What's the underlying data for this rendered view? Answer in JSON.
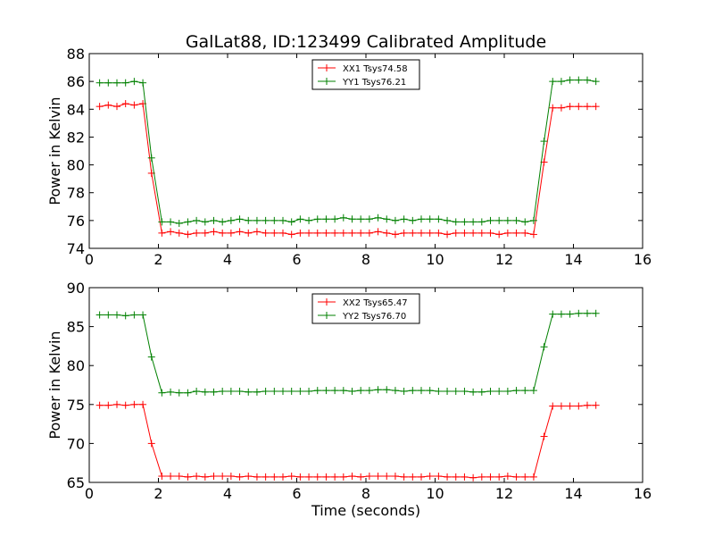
{
  "figure_title": "GalLat88, ID:123499 Calibrated Amplitude",
  "chart_data": [
    {
      "type": "line",
      "title": "GalLat88, ID:123499 Calibrated Amplitude",
      "xlabel": "",
      "ylabel": "Power in Kelvin",
      "xlim": [
        0,
        16
      ],
      "ylim": [
        74,
        88
      ],
      "xticks": [
        0,
        2,
        4,
        6,
        8,
        10,
        12,
        14,
        16
      ],
      "yticks": [
        74,
        76,
        78,
        80,
        82,
        84,
        86,
        88
      ],
      "grid": false,
      "legend_position": "top-center",
      "series": [
        {
          "name": "XX1 Tsys74.58",
          "color": "#ff0000",
          "marker": "+",
          "x": [
            0.3,
            0.55,
            0.8,
            1.05,
            1.3,
            1.55,
            1.8,
            2.1,
            2.35,
            2.6,
            2.85,
            3.1,
            3.35,
            3.6,
            3.85,
            4.1,
            4.35,
            4.6,
            4.85,
            5.1,
            5.35,
            5.6,
            5.85,
            6.1,
            6.35,
            6.6,
            6.85,
            7.1,
            7.35,
            7.6,
            7.85,
            8.1,
            8.35,
            8.6,
            8.85,
            9.1,
            9.35,
            9.6,
            9.85,
            10.1,
            10.35,
            10.6,
            10.85,
            11.1,
            11.35,
            11.6,
            11.85,
            12.1,
            12.35,
            12.6,
            12.85,
            13.15,
            13.4,
            13.65,
            13.9,
            14.15,
            14.4,
            14.65
          ],
          "y": [
            84.2,
            84.3,
            84.2,
            84.4,
            84.3,
            84.4,
            79.4,
            75.1,
            75.2,
            75.1,
            75.0,
            75.1,
            75.1,
            75.2,
            75.1,
            75.1,
            75.2,
            75.1,
            75.2,
            75.1,
            75.1,
            75.1,
            75.0,
            75.1,
            75.1,
            75.1,
            75.1,
            75.1,
            75.1,
            75.1,
            75.1,
            75.1,
            75.2,
            75.1,
            75.0,
            75.1,
            75.1,
            75.1,
            75.1,
            75.1,
            75.0,
            75.1,
            75.1,
            75.1,
            75.1,
            75.1,
            75.0,
            75.1,
            75.1,
            75.1,
            75.0,
            80.2,
            84.1,
            84.1,
            84.2,
            84.2,
            84.2,
            84.2
          ]
        },
        {
          "name": "YY1 Tsys76.21",
          "color": "#008000",
          "marker": "+",
          "x": [
            0.3,
            0.55,
            0.8,
            1.05,
            1.3,
            1.55,
            1.8,
            2.1,
            2.35,
            2.6,
            2.85,
            3.1,
            3.35,
            3.6,
            3.85,
            4.1,
            4.35,
            4.6,
            4.85,
            5.1,
            5.35,
            5.6,
            5.85,
            6.1,
            6.35,
            6.6,
            6.85,
            7.1,
            7.35,
            7.6,
            7.85,
            8.1,
            8.35,
            8.6,
            8.85,
            9.1,
            9.35,
            9.6,
            9.85,
            10.1,
            10.35,
            10.6,
            10.85,
            11.1,
            11.35,
            11.6,
            11.85,
            12.1,
            12.35,
            12.6,
            12.85,
            13.15,
            13.4,
            13.65,
            13.9,
            14.15,
            14.4,
            14.65
          ],
          "y": [
            85.9,
            85.9,
            85.9,
            85.9,
            86.0,
            85.9,
            80.5,
            75.9,
            75.9,
            75.8,
            75.9,
            76.0,
            75.9,
            76.0,
            75.9,
            76.0,
            76.1,
            76.0,
            76.0,
            76.0,
            76.0,
            76.0,
            75.9,
            76.1,
            76.0,
            76.1,
            76.1,
            76.1,
            76.2,
            76.1,
            76.1,
            76.1,
            76.2,
            76.1,
            76.0,
            76.1,
            76.0,
            76.1,
            76.1,
            76.1,
            76.0,
            75.9,
            75.9,
            75.9,
            75.9,
            76.0,
            76.0,
            76.0,
            76.0,
            75.9,
            76.0,
            81.7,
            86.0,
            86.0,
            86.1,
            86.1,
            86.1,
            86.0
          ]
        }
      ]
    },
    {
      "type": "line",
      "title": "",
      "xlabel": "Time (seconds)",
      "ylabel": "Power in Kelvin",
      "xlim": [
        0,
        16
      ],
      "ylim": [
        65,
        90
      ],
      "xticks": [
        0,
        2,
        4,
        6,
        8,
        10,
        12,
        14,
        16
      ],
      "yticks": [
        65,
        70,
        75,
        80,
        85,
        90
      ],
      "grid": false,
      "legend_position": "top-center",
      "series": [
        {
          "name": "XX2 Tsys65.47",
          "color": "#ff0000",
          "marker": "+",
          "x": [
            0.3,
            0.55,
            0.8,
            1.05,
            1.3,
            1.55,
            1.8,
            2.1,
            2.35,
            2.6,
            2.85,
            3.1,
            3.35,
            3.6,
            3.85,
            4.1,
            4.35,
            4.6,
            4.85,
            5.1,
            5.35,
            5.6,
            5.85,
            6.1,
            6.35,
            6.6,
            6.85,
            7.1,
            7.35,
            7.6,
            7.85,
            8.1,
            8.35,
            8.6,
            8.85,
            9.1,
            9.35,
            9.6,
            9.85,
            10.1,
            10.35,
            10.6,
            10.85,
            11.1,
            11.35,
            11.6,
            11.85,
            12.1,
            12.35,
            12.6,
            12.85,
            13.15,
            13.4,
            13.65,
            13.9,
            14.15,
            14.4,
            14.65
          ],
          "y": [
            74.9,
            74.9,
            75.0,
            74.9,
            75.0,
            75.0,
            70.0,
            65.8,
            65.8,
            65.8,
            65.7,
            65.8,
            65.7,
            65.8,
            65.8,
            65.8,
            65.7,
            65.8,
            65.7,
            65.7,
            65.7,
            65.7,
            65.8,
            65.7,
            65.7,
            65.7,
            65.7,
            65.7,
            65.7,
            65.8,
            65.7,
            65.8,
            65.8,
            65.8,
            65.8,
            65.7,
            65.7,
            65.7,
            65.8,
            65.8,
            65.7,
            65.7,
            65.7,
            65.6,
            65.7,
            65.7,
            65.7,
            65.8,
            65.7,
            65.7,
            65.7,
            70.9,
            74.8,
            74.8,
            74.8,
            74.8,
            74.9,
            74.9
          ]
        },
        {
          "name": "YY2 Tsys76.70",
          "color": "#008000",
          "marker": "+",
          "x": [
            0.3,
            0.55,
            0.8,
            1.05,
            1.3,
            1.55,
            1.8,
            2.1,
            2.35,
            2.6,
            2.85,
            3.1,
            3.35,
            3.6,
            3.85,
            4.1,
            4.35,
            4.6,
            4.85,
            5.1,
            5.35,
            5.6,
            5.85,
            6.1,
            6.35,
            6.6,
            6.85,
            7.1,
            7.35,
            7.6,
            7.85,
            8.1,
            8.35,
            8.6,
            8.85,
            9.1,
            9.35,
            9.6,
            9.85,
            10.1,
            10.35,
            10.6,
            10.85,
            11.1,
            11.35,
            11.6,
            11.85,
            12.1,
            12.35,
            12.6,
            12.85,
            13.15,
            13.4,
            13.65,
            13.9,
            14.15,
            14.4,
            14.65
          ],
          "y": [
            86.5,
            86.5,
            86.5,
            86.4,
            86.5,
            86.5,
            81.1,
            76.5,
            76.6,
            76.5,
            76.5,
            76.7,
            76.6,
            76.6,
            76.7,
            76.7,
            76.7,
            76.6,
            76.6,
            76.7,
            76.7,
            76.7,
            76.7,
            76.7,
            76.7,
            76.8,
            76.8,
            76.8,
            76.8,
            76.7,
            76.8,
            76.8,
            76.9,
            76.9,
            76.8,
            76.7,
            76.8,
            76.8,
            76.8,
            76.7,
            76.7,
            76.7,
            76.7,
            76.6,
            76.6,
            76.7,
            76.7,
            76.7,
            76.8,
            76.8,
            76.8,
            82.4,
            86.6,
            86.6,
            86.6,
            86.7,
            86.7,
            86.7
          ]
        }
      ]
    }
  ]
}
